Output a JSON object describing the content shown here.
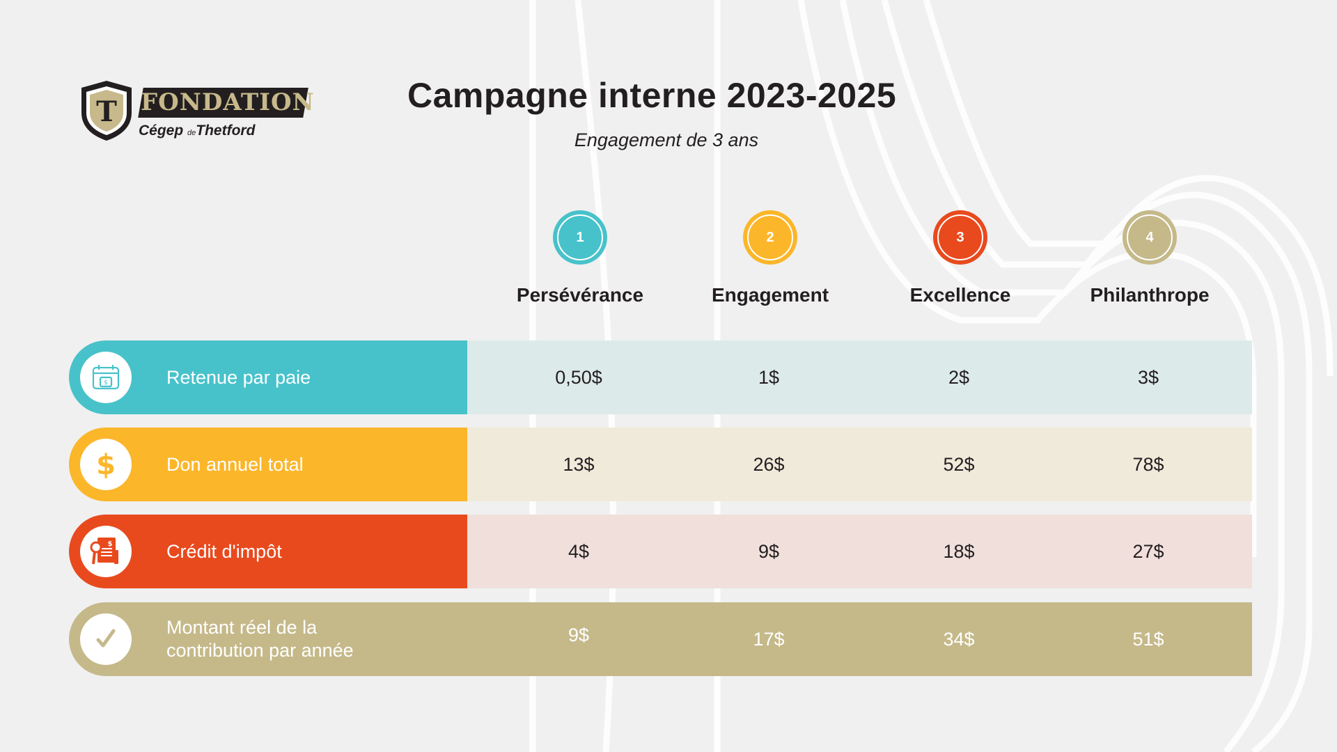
{
  "logo": {
    "shield_letter": "T",
    "wordmark": "FONDATION",
    "sub_prefix": "Cégep",
    "sub_small": "de",
    "sub_bold": "Thetford"
  },
  "title": "Campagne interne 2023-2025",
  "subtitle": "Engagement de 3 ans",
  "colors": {
    "teal": "#48c2ca",
    "yellow": "#fbb62a",
    "red": "#e84a1e",
    "khaki": "#c5b98a",
    "dark": "#231f20",
    "background": "#f0f0f0"
  },
  "levels": [
    {
      "number": "1",
      "name": "Persévérance",
      "color": "#48c2ca"
    },
    {
      "number": "2",
      "name": "Engagement",
      "color": "#fbb62a"
    },
    {
      "number": "3",
      "name": "Excellence",
      "color": "#e84a1e"
    },
    {
      "number": "4",
      "name": "Philanthrope",
      "color": "#c5b98a"
    }
  ],
  "rows": [
    {
      "label": "Retenue par paie",
      "icon": "calendar-payroll-icon",
      "color": "#48c2ca",
      "tint": "#ddeaea",
      "values": [
        "0,50$",
        "1$",
        "2$",
        "3$"
      ]
    },
    {
      "label": "Don annuel total",
      "icon": "dollar-icon",
      "color": "#fbb62a",
      "tint": "#f0eadb",
      "values": [
        "13$",
        "26$",
        "52$",
        "78$"
      ]
    },
    {
      "label": "Crédit d'impôt",
      "icon": "tax-document-icon",
      "color": "#e84a1e",
      "tint": "#f0dfdb",
      "values": [
        "4$",
        "9$",
        "18$",
        "27$"
      ]
    },
    {
      "label_line1": "Montant réel de la",
      "label_line2": "contribution par année",
      "icon": "checkmark-icon",
      "color": "#c5b98a",
      "tint": "#c5b98a",
      "values": [
        "9$",
        "17$",
        "34$",
        "51$"
      ]
    }
  ]
}
